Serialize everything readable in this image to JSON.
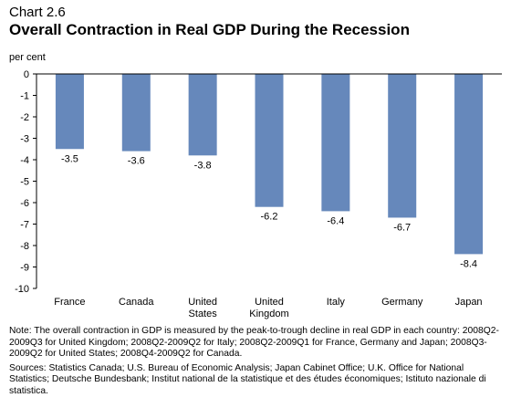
{
  "header": {
    "chart_number": "Chart 2.6",
    "title": "Overall Contraction in Real GDP During the Recession"
  },
  "chart_data": {
    "type": "bar",
    "title": "Overall Contraction in Real GDP During the Recession",
    "ylabel": "per cent",
    "xlabel": "",
    "ylim": [
      -10,
      0
    ],
    "yticks": [
      0,
      -1,
      -2,
      -3,
      -4,
      -5,
      -6,
      -7,
      -8,
      -9,
      -10
    ],
    "categories": [
      "France",
      "Canada",
      "United States",
      "United Kingdom",
      "Italy",
      "Germany",
      "Japan"
    ],
    "category_lines": [
      [
        "France"
      ],
      [
        "Canada"
      ],
      [
        "United",
        "States"
      ],
      [
        "United",
        "Kingdom"
      ],
      [
        "Italy"
      ],
      [
        "Germany"
      ],
      [
        "Japan"
      ]
    ],
    "values": [
      -3.5,
      -3.6,
      -3.8,
      -6.2,
      -6.4,
      -6.7,
      -8.4
    ],
    "data_labels": [
      "-3.5",
      "-3.6",
      "-3.8",
      "-6.2",
      "-6.4",
      "-6.7",
      "-8.4"
    ],
    "bar_color": "#6688bb",
    "grid": false,
    "legend": "none"
  },
  "notes": {
    "note": "Note: The overall contraction in GDP is measured by the peak-to-trough decline in real GDP in each country: 2008Q2-2009Q3 for United Kingdom; 2008Q2-2009Q2 for Italy; 2008Q2-2009Q1 for France, Germany and Japan; 2008Q3-2009Q2 for United States; 2008Q4-2009Q2 for Canada.",
    "sources": "Sources: Statistics Canada; U.S. Bureau of Economic Analysis; Japan Cabinet Office; U.K. Office for National Statistics; Deutsche Bundesbank; Institut national de la statistique et des études économiques; Istituto nazionale di statistica."
  }
}
